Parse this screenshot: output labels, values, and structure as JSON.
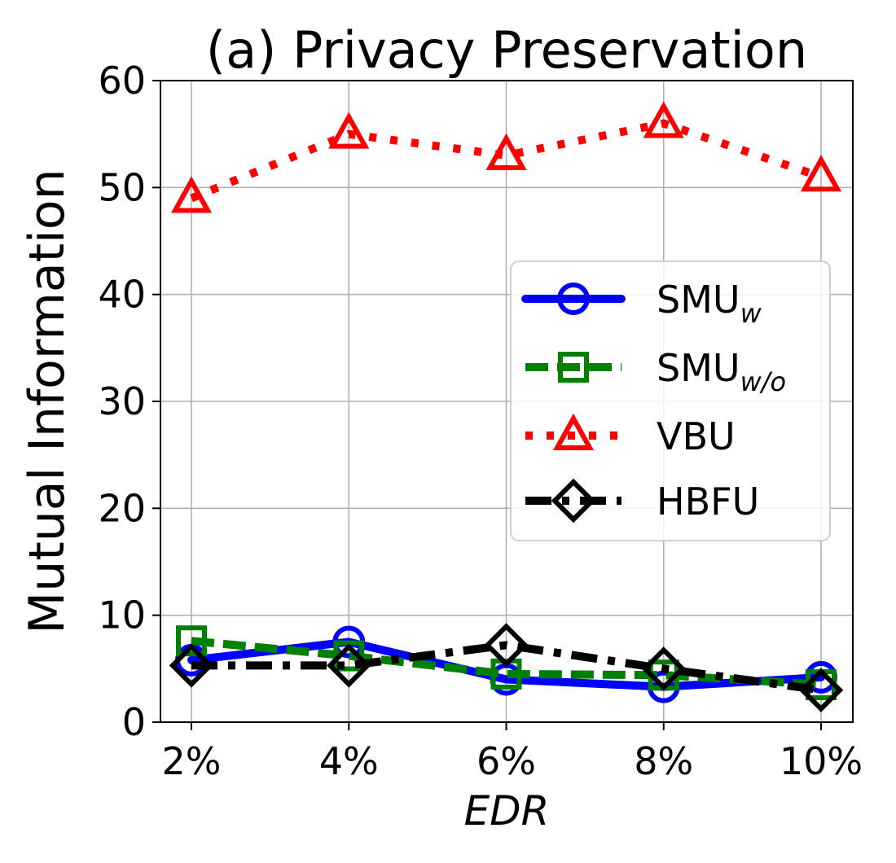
{
  "chart_data": {
    "type": "line",
    "title": "(a) Privacy Preservation",
    "xlabel": "EDR",
    "ylabel": "Mutual Information",
    "categories": [
      "2%",
      "4%",
      "6%",
      "8%",
      "10%"
    ],
    "ylim": [
      0,
      60
    ],
    "yticks": [
      "0",
      "10",
      "20",
      "30",
      "40",
      "50",
      "60"
    ],
    "grid": true,
    "legend_position": "center-right",
    "series": [
      {
        "name": "SMU",
        "name_sub": "w",
        "values": [
          5.8,
          7.5,
          4.0,
          3.3,
          4.2
        ],
        "color": "#0000ff",
        "marker": "circle",
        "linestyle": "solid"
      },
      {
        "name": "SMU",
        "name_sub": "w/o",
        "values": [
          7.6,
          6.2,
          4.5,
          4.4,
          3.5
        ],
        "color": "#008000",
        "marker": "square",
        "linestyle": "dashed"
      },
      {
        "name": "VBU",
        "name_sub": "",
        "values": [
          49.0,
          55.0,
          53.0,
          56.0,
          51.0
        ],
        "color": "#ff0000",
        "marker": "triangle",
        "linestyle": "dotted"
      },
      {
        "name": "HBFU",
        "name_sub": "",
        "values": [
          5.3,
          5.3,
          7.2,
          5.0,
          3.0
        ],
        "color": "#000000",
        "marker": "diamond",
        "linestyle": "dashdot"
      }
    ]
  }
}
